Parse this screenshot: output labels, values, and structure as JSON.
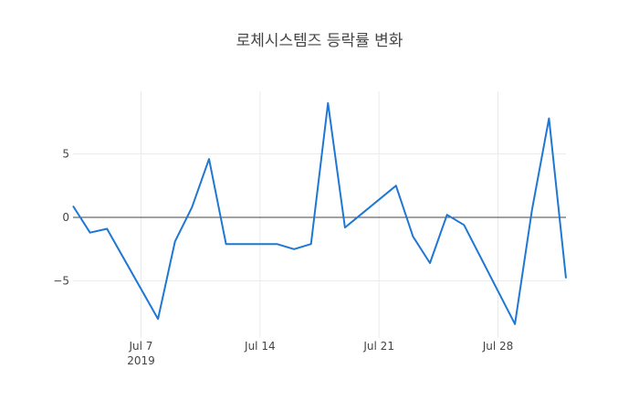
{
  "chart_data": {
    "type": "line",
    "title": "로체시스템즈 등락률 변화",
    "xlabel": "",
    "ylabel": "",
    "x": [
      "2019-07-03",
      "2019-07-04",
      "2019-07-05",
      "2019-07-08",
      "2019-07-09",
      "2019-07-10",
      "2019-07-11",
      "2019-07-12",
      "2019-07-15",
      "2019-07-16",
      "2019-07-17",
      "2019-07-18",
      "2019-07-19",
      "2019-07-22",
      "2019-07-23",
      "2019-07-24",
      "2019-07-25",
      "2019-07-26",
      "2019-07-29",
      "2019-07-30",
      "2019-07-31",
      "2019-08-01"
    ],
    "series": [
      {
        "name": "등락률",
        "color": "#1f77d4",
        "values": [
          0.9,
          -1.2,
          -0.9,
          -8.0,
          -1.9,
          0.8,
          4.6,
          -2.1,
          -2.1,
          -2.5,
          -2.1,
          9.0,
          -0.8,
          2.5,
          -1.5,
          -3.6,
          0.2,
          -0.6,
          -8.4,
          0.6,
          7.8,
          -4.8
        ]
      }
    ],
    "x_tick_labels": [
      "Jul 7",
      "Jul 14",
      "Jul 21",
      "Jul 28"
    ],
    "x_tick_sublabel": "2019",
    "y_tick_labels": [
      "5",
      "0",
      "−5"
    ],
    "y_ticks": [
      5,
      0,
      -5
    ],
    "ylim": [
      -9.4,
      10.0
    ],
    "xlim": [
      "2019-07-03",
      "2019-08-01"
    ],
    "grid": true,
    "zero_line": true,
    "legend": "none"
  }
}
